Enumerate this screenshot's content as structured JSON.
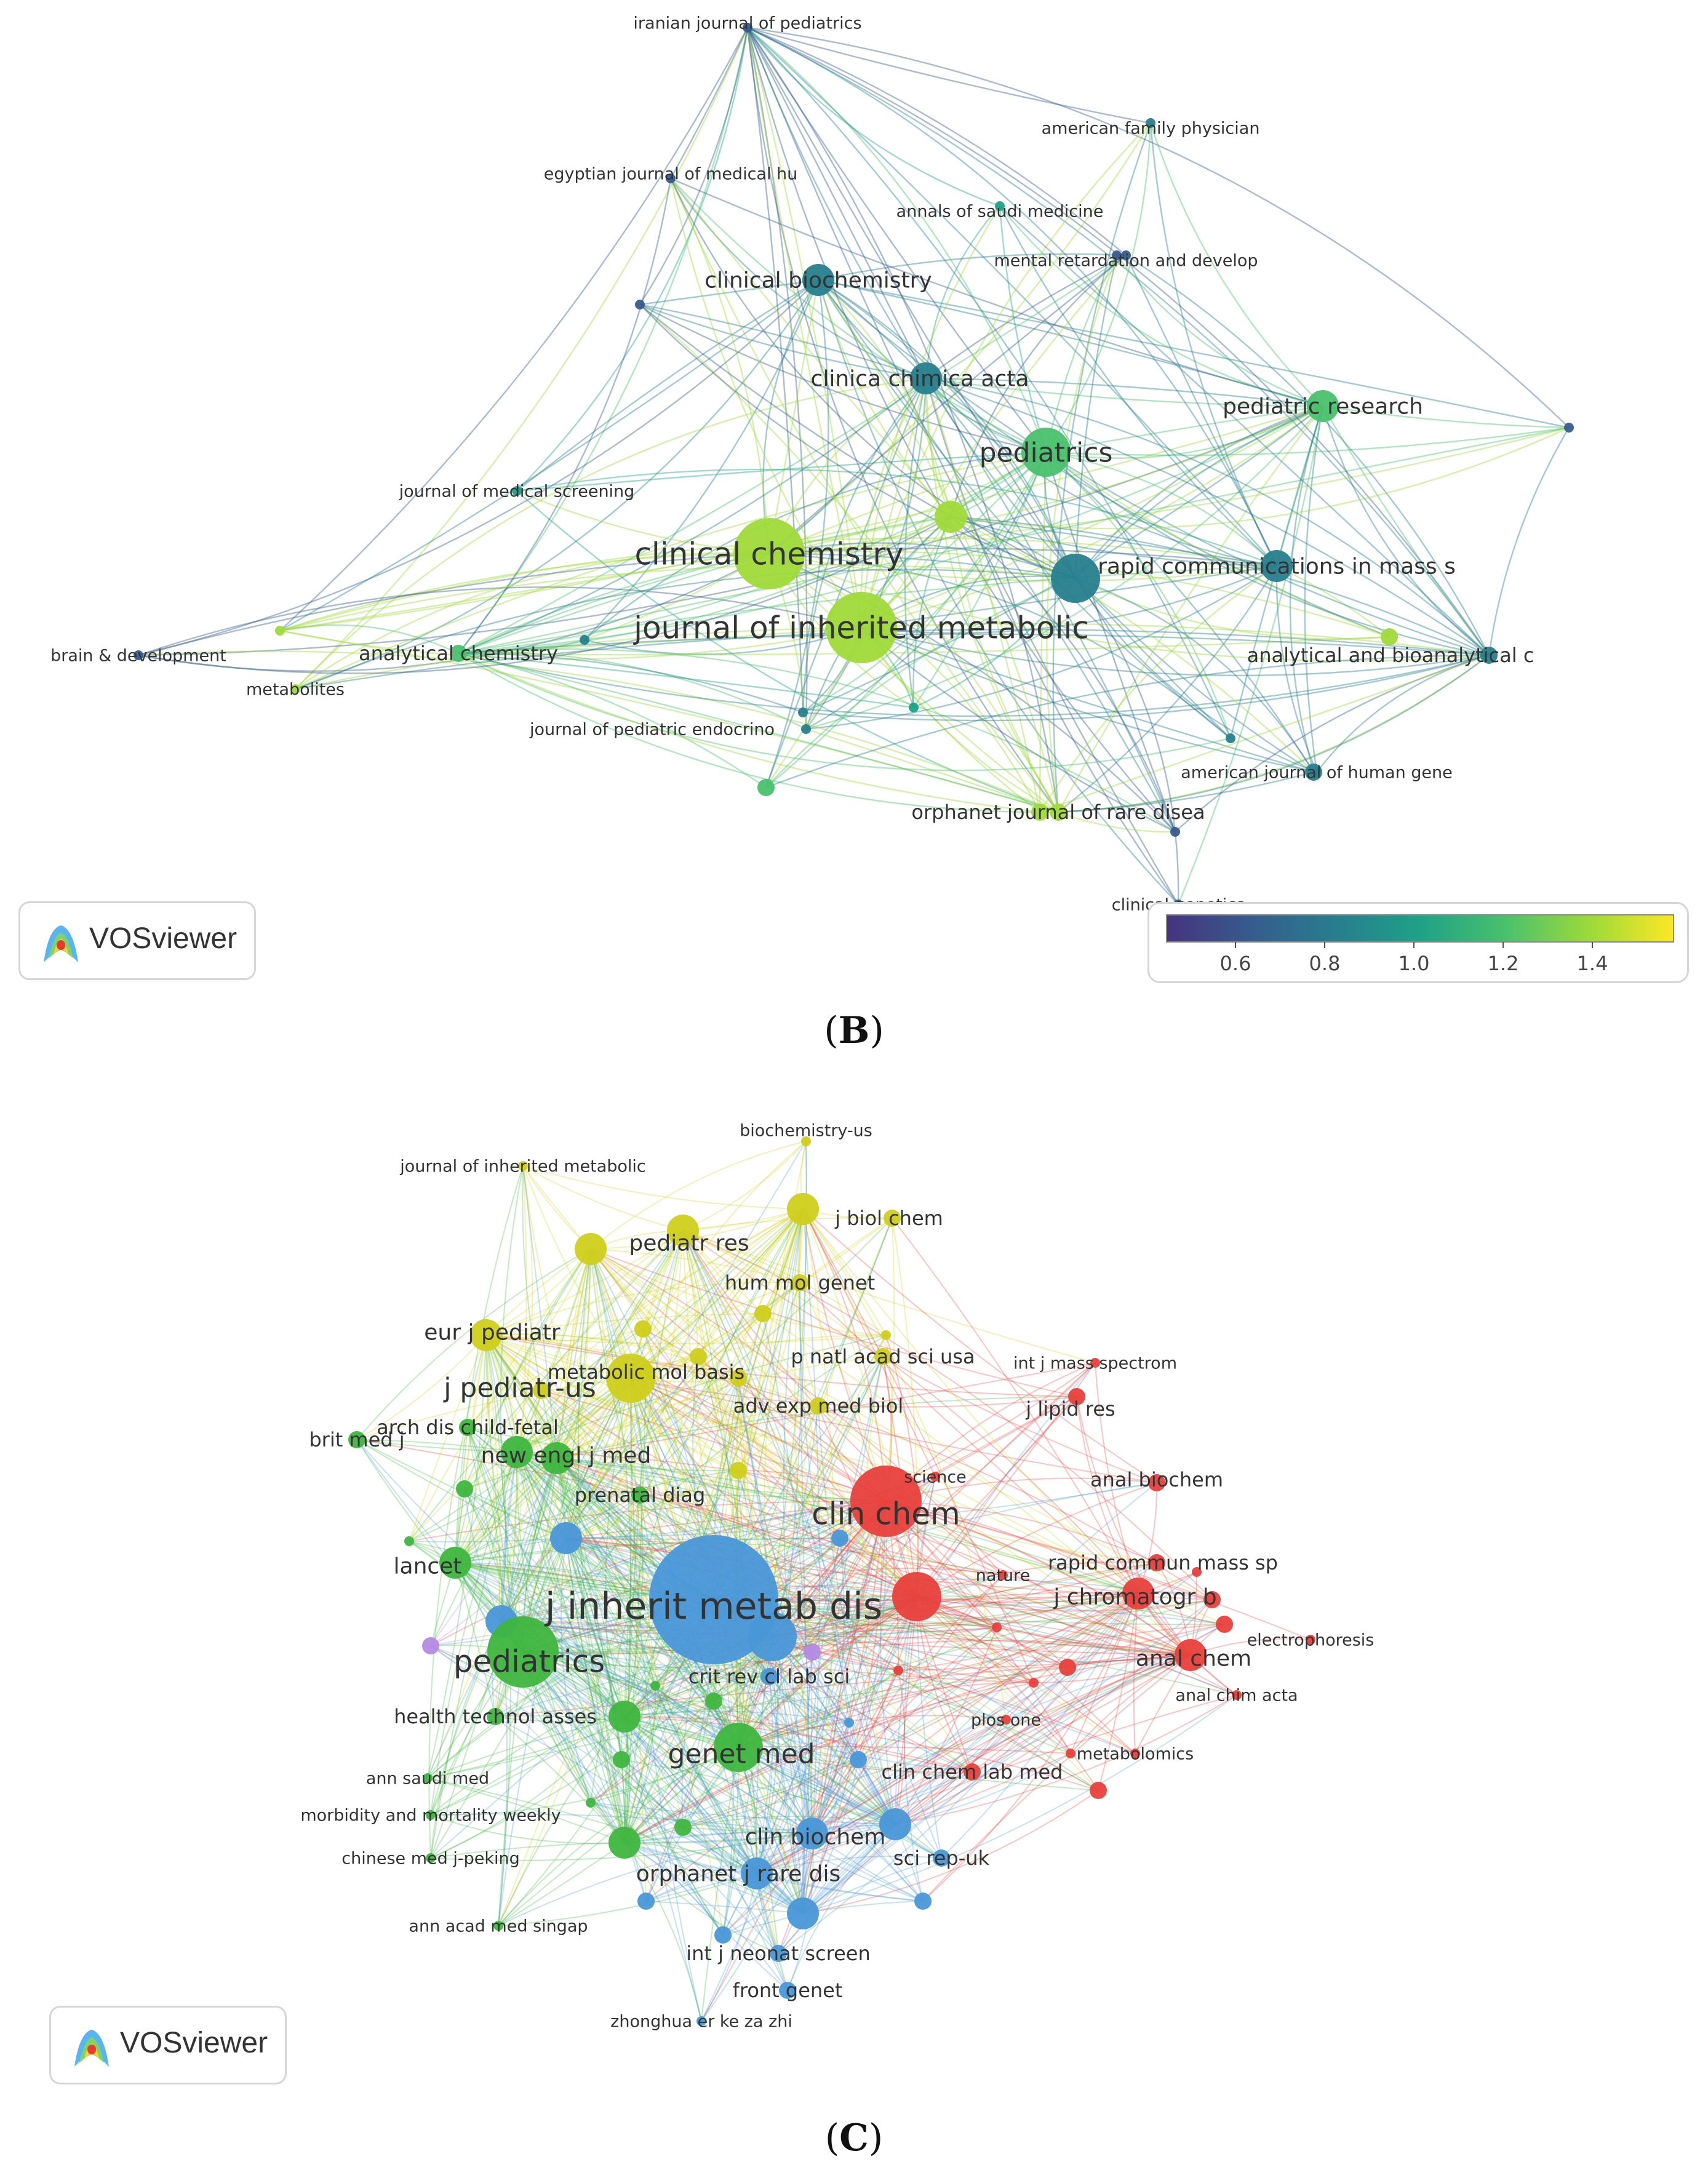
{
  "panel_b": {
    "caption_letter": "B",
    "logo_text": "VOSviewer",
    "colorbar_ticks": [
      "0.6",
      "0.8",
      "1.0",
      "1.2",
      "1.4"
    ],
    "colorbar_colors": [
      "#46337e",
      "#365c8d",
      "#277f8e",
      "#1fa187",
      "#4ac16d",
      "#a0da39",
      "#fde725"
    ],
    "nodes": [
      {
        "id": "b1",
        "label": "iranian journal of pediatrics",
        "size": "xs",
        "value": 0.55
      },
      {
        "id": "b2",
        "label": "american family physician",
        "size": "xs",
        "value": 0.8
      },
      {
        "id": "b3",
        "label": "egyptian journal of medical hu",
        "size": "xs",
        "value": 0.55
      },
      {
        "id": "b4",
        "label": "annals of saudi medicine",
        "size": "xs",
        "value": 1.0
      },
      {
        "id": "b5",
        "label": "mental retardation and develop",
        "size": "xs",
        "value": 0.55
      },
      {
        "id": "b6",
        "label": "clinical biochemistry",
        "size": "m",
        "value": 0.8
      },
      {
        "id": "b7",
        "label": "clinica chimica acta",
        "size": "m",
        "value": 0.8
      },
      {
        "id": "b8",
        "label": "pediatric research",
        "size": "m",
        "value": 1.2
      },
      {
        "id": "b9",
        "label": "pediatrics",
        "size": "l",
        "value": 1.2
      },
      {
        "id": "b10",
        "label": "journal of medical screening",
        "size": "xs",
        "value": 1.0
      },
      {
        "id": "b11",
        "label": "clinical chemistry",
        "size": "xl",
        "value": 1.45
      },
      {
        "id": "b12",
        "label": "rapid communications in mass s",
        "size": "m",
        "value": 0.8
      },
      {
        "id": "b13",
        "label": "journal of inherited metabolic",
        "size": "xl",
        "value": 1.45
      },
      {
        "id": "b14",
        "label": "brain & development",
        "size": "xs",
        "value": 0.55
      },
      {
        "id": "b15",
        "label": "analytical chemistry",
        "size": "s",
        "value": 1.2
      },
      {
        "id": "b16",
        "label": "metabolites",
        "size": "xs",
        "value": 1.4
      },
      {
        "id": "b17",
        "label": "analytical and bioanalytical c",
        "size": "s",
        "value": 0.9
      },
      {
        "id": "b18",
        "label": "journal of pediatric endocrino",
        "size": "xs",
        "value": 0.8
      },
      {
        "id": "b19",
        "label": "american journal of human gene",
        "size": "xs",
        "value": 0.9
      },
      {
        "id": "b20",
        "label": "orphanet journal of rare disea",
        "size": "s",
        "value": 1.45
      },
      {
        "id": "b21",
        "label": "clinical genetics",
        "size": "xs",
        "value": 0.55
      }
    ]
  },
  "panel_c": {
    "caption_letter": "C",
    "logo_text": "VOSviewer",
    "cluster_colors": {
      "red": "#e8403c",
      "green": "#3fb63f",
      "blue": "#4a97d8",
      "yellow": "#cfcf1c",
      "purple": "#b48ae3"
    },
    "nodes": [
      {
        "id": "c1",
        "label": "biochemistry-us",
        "cluster": "yellow",
        "size": "xs"
      },
      {
        "id": "c2",
        "label": "journal of inherited metabolic",
        "cluster": "yellow",
        "size": "xs"
      },
      {
        "id": "c3",
        "label": "j biol chem",
        "cluster": "yellow",
        "size": "s"
      },
      {
        "id": "c4",
        "label": "pediatr res",
        "cluster": "yellow",
        "size": "m"
      },
      {
        "id": "c5",
        "label": "hum mol genet",
        "cluster": "yellow",
        "size": "s"
      },
      {
        "id": "c6",
        "label": "eur j pediatr",
        "cluster": "yellow",
        "size": "m"
      },
      {
        "id": "c7",
        "label": "p natl acad sci usa",
        "cluster": "yellow",
        "size": "s"
      },
      {
        "id": "c8",
        "label": "int j mass spectrom",
        "cluster": "red",
        "size": "xs"
      },
      {
        "id": "c9",
        "label": "metabolic mol basis",
        "cluster": "yellow",
        "size": "s"
      },
      {
        "id": "c10",
        "label": "j pediatr-us",
        "cluster": "yellow",
        "size": "l"
      },
      {
        "id": "c11",
        "label": "adv exp med biol",
        "cluster": "yellow",
        "size": "s"
      },
      {
        "id": "c12",
        "label": "j lipid res",
        "cluster": "red",
        "size": "s"
      },
      {
        "id": "c13",
        "label": "arch dis child-fetal",
        "cluster": "green",
        "size": "s"
      },
      {
        "id": "c14",
        "label": "brit med j",
        "cluster": "green",
        "size": "s"
      },
      {
        "id": "c15",
        "label": "new engl j med",
        "cluster": "green",
        "size": "m"
      },
      {
        "id": "c16",
        "label": "science",
        "cluster": "red",
        "size": "xs"
      },
      {
        "id": "c17",
        "label": "anal biochem",
        "cluster": "red",
        "size": "s"
      },
      {
        "id": "c18",
        "label": "prenatal diag",
        "cluster": "green",
        "size": "s"
      },
      {
        "id": "c19",
        "label": "clin chem",
        "cluster": "red",
        "size": "xl"
      },
      {
        "id": "c20",
        "label": "lancet",
        "cluster": "green",
        "size": "m"
      },
      {
        "id": "c21",
        "label": "rapid commun mass sp",
        "cluster": "red",
        "size": "s"
      },
      {
        "id": "c22",
        "label": "nature",
        "cluster": "red",
        "size": "xs"
      },
      {
        "id": "c23",
        "label": "j chromatogr b",
        "cluster": "red",
        "size": "m"
      },
      {
        "id": "c24",
        "label": "j inherit metab dis",
        "cluster": "blue",
        "size": "xxl"
      },
      {
        "id": "c25",
        "label": "electrophoresis",
        "cluster": "red",
        "size": "xs"
      },
      {
        "id": "c26",
        "label": "pediatrics",
        "cluster": "green",
        "size": "xl"
      },
      {
        "id": "c27",
        "label": "anal chem",
        "cluster": "red",
        "size": "m"
      },
      {
        "id": "c28",
        "label": "crit rev cl lab sci",
        "cluster": "blue",
        "size": "s"
      },
      {
        "id": "c29",
        "label": "anal chim acta",
        "cluster": "red",
        "size": "xs"
      },
      {
        "id": "c30",
        "label": "health technol asses",
        "cluster": "green",
        "size": "s"
      },
      {
        "id": "c31",
        "label": "plos one",
        "cluster": "red",
        "size": "xs"
      },
      {
        "id": "c32",
        "label": "genet med",
        "cluster": "green",
        "size": "l"
      },
      {
        "id": "c33",
        "label": "ann saudi med",
        "cluster": "green",
        "size": "xs"
      },
      {
        "id": "c34",
        "label": "metabolomics",
        "cluster": "red",
        "size": "xs"
      },
      {
        "id": "c35",
        "label": "clin chem lab med",
        "cluster": "red",
        "size": "s"
      },
      {
        "id": "c36",
        "label": "morbidity and mortality weekly",
        "cluster": "green",
        "size": "xs"
      },
      {
        "id": "c37",
        "label": "clin biochem",
        "cluster": "blue",
        "size": "m"
      },
      {
        "id": "c38",
        "label": "chinese med j-peking",
        "cluster": "green",
        "size": "xs"
      },
      {
        "id": "c39",
        "label": "sci rep-uk",
        "cluster": "blue",
        "size": "s"
      },
      {
        "id": "c40",
        "label": "orphanet j rare dis",
        "cluster": "blue",
        "size": "m"
      },
      {
        "id": "c41",
        "label": "ann acad med singap",
        "cluster": "green",
        "size": "xs"
      },
      {
        "id": "c42",
        "label": "int j neonat screen",
        "cluster": "blue",
        "size": "s"
      },
      {
        "id": "c43",
        "label": "front genet",
        "cluster": "blue",
        "size": "s"
      },
      {
        "id": "c44",
        "label": "zhonghua er ke za zhi",
        "cluster": "blue",
        "size": "xs"
      }
    ]
  }
}
